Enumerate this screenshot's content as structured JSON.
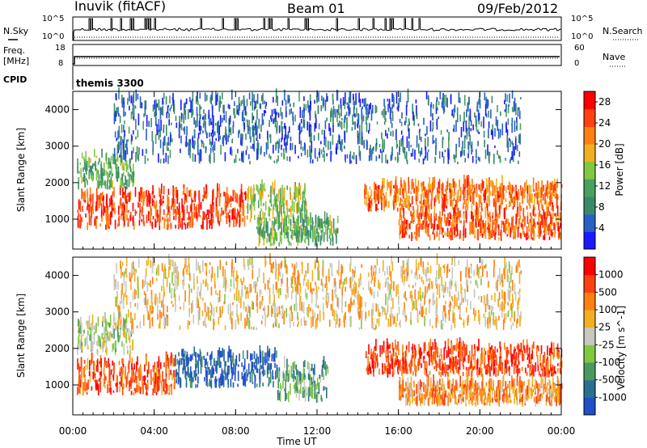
{
  "header": {
    "station": "Inuvik (fitACF)",
    "beam": "Beam 01",
    "date": "09/Feb/2012"
  },
  "summary": {
    "nsky_label": "N.Sky",
    "nsearch_label": "N.Search",
    "nsky_ticks": [
      "10^5",
      "10^0"
    ],
    "nsearch_ticks": [
      "10^5",
      "10^0"
    ],
    "freq_label": "Freq.",
    "freq_unit": "[MHz]",
    "freq_ticks": [
      "18",
      "8"
    ],
    "nave_label": "Nave",
    "nave_ticks": [
      "60",
      "0"
    ],
    "cpid_label": "CPID",
    "cpid_value": "themis 3300"
  },
  "chart_data": [
    {
      "type": "heatmap",
      "name": "power",
      "ylabel": "Slant Range [km]",
      "xlabel": "",
      "xlim": [
        0,
        24
      ],
      "ylim": [
        180,
        4500
      ],
      "yticks": [
        1000,
        2000,
        3000,
        4000
      ],
      "x_tick_values": [
        0,
        4,
        8,
        12,
        16,
        20,
        24
      ],
      "colorbar_label": "Power [dB]",
      "colorbar_ticks": [
        "28",
        "24",
        "20",
        "16",
        "12",
        "8",
        "4"
      ],
      "colorbar_range": [
        0,
        30
      ],
      "colors": [
        "#1a1aff",
        "#2860c8",
        "#3a8a6a",
        "#4aa060",
        "#7fc840",
        "#f0b020",
        "#ff8010",
        "#ff4010",
        "#ff0000"
      ],
      "regions": [
        {
          "x": [
            0.2,
            8.5
          ],
          "y": [
            700,
            1700
          ],
          "level": 0.85
        },
        {
          "x": [
            8.5,
            11.5
          ],
          "y": [
            900,
            1800
          ],
          "level": 0.5
        },
        {
          "x": [
            14.3,
            24
          ],
          "y": [
            1200,
            1900
          ],
          "level": 0.75
        },
        {
          "x": [
            16,
            24
          ],
          "y": [
            400,
            1100
          ],
          "level": 0.8
        },
        {
          "x": [
            0.2,
            3
          ],
          "y": [
            1800,
            2700
          ],
          "level": 0.4
        },
        {
          "x": [
            9,
            13
          ],
          "y": [
            250,
            900
          ],
          "level": 0.4
        },
        {
          "x": [
            2,
            22
          ],
          "y": [
            2500,
            4300
          ],
          "level": 0.2
        }
      ]
    },
    {
      "type": "heatmap",
      "name": "velocity",
      "ylabel": "Slant Range [km]",
      "xlabel": "Time UT",
      "xlim": [
        0,
        24
      ],
      "ylim": [
        180,
        4500
      ],
      "yticks": [
        1000,
        2000,
        3000,
        4000
      ],
      "xtick_labels": [
        "00:00",
        "04:00",
        "08:00",
        "12:00",
        "16:00",
        "20:00",
        "00:00"
      ],
      "x_tick_values": [
        0,
        4,
        8,
        12,
        16,
        20,
        24
      ],
      "colorbar_label": "Velocity [m s^-1]",
      "colorbar_ticks": [
        "1000",
        "500",
        "100",
        "25",
        "-25",
        "-100",
        "-500",
        "-1000"
      ],
      "colors": [
        "#2050c8",
        "#2a7090",
        "#4a9a60",
        "#7fc840",
        "#c8c8c0",
        "#f0b020",
        "#ff8010",
        "#ff4010",
        "#ff0000"
      ],
      "regions": [
        {
          "x": [
            0.2,
            5
          ],
          "y": [
            700,
            1600
          ],
          "level": 0.8
        },
        {
          "x": [
            5,
            10
          ],
          "y": [
            900,
            1800
          ],
          "level": 0.1
        },
        {
          "x": [
            10,
            12.5
          ],
          "y": [
            500,
            1500
          ],
          "level": 0.3
        },
        {
          "x": [
            14.3,
            24
          ],
          "y": [
            1200,
            2000
          ],
          "level": 0.85
        },
        {
          "x": [
            16,
            24
          ],
          "y": [
            400,
            1000
          ],
          "level": 0.7
        },
        {
          "x": [
            0.2,
            3
          ],
          "y": [
            1800,
            2700
          ],
          "level": 0.45
        },
        {
          "x": [
            2,
            22
          ],
          "y": [
            2500,
            4300
          ],
          "level": 0.6
        }
      ]
    }
  ]
}
